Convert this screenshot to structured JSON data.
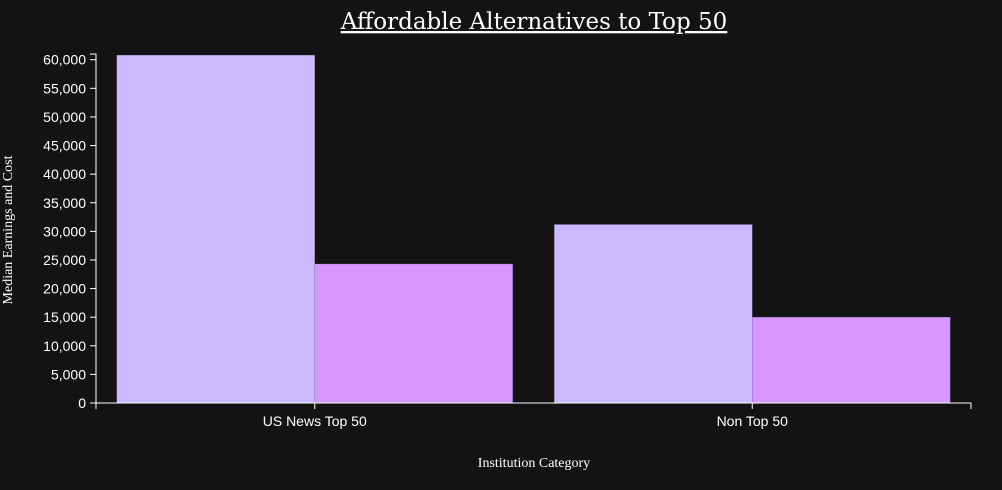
{
  "chart_data": {
    "type": "bar",
    "title": "Affordable Alternatives to Top 50",
    "xlabel": "Institution Category",
    "ylabel": "Median Earnings and Cost",
    "categories": [
      "US News Top 50",
      "Non Top 50"
    ],
    "series": [
      {
        "values": [
          60800,
          31200
        ],
        "color": "#cbbbfe"
      },
      {
        "values": [
          24300,
          15000
        ],
        "color": "#d896ff"
      }
    ],
    "ylim": [
      0,
      61000
    ],
    "yticks": [
      0,
      5000,
      10000,
      15000,
      20000,
      25000,
      30000,
      35000,
      40000,
      45000,
      50000,
      55000,
      60000
    ],
    "ytick_labels": [
      "0",
      "5,000",
      "10,000",
      "15,000",
      "20,000",
      "25,000",
      "30,000",
      "35,000",
      "40,000",
      "45,000",
      "50,000",
      "55,000",
      "60,000"
    ],
    "grid": false,
    "legend": "none",
    "colors": {
      "background": "#131313",
      "text": "#ffffff",
      "axis": "#ffffff"
    }
  }
}
